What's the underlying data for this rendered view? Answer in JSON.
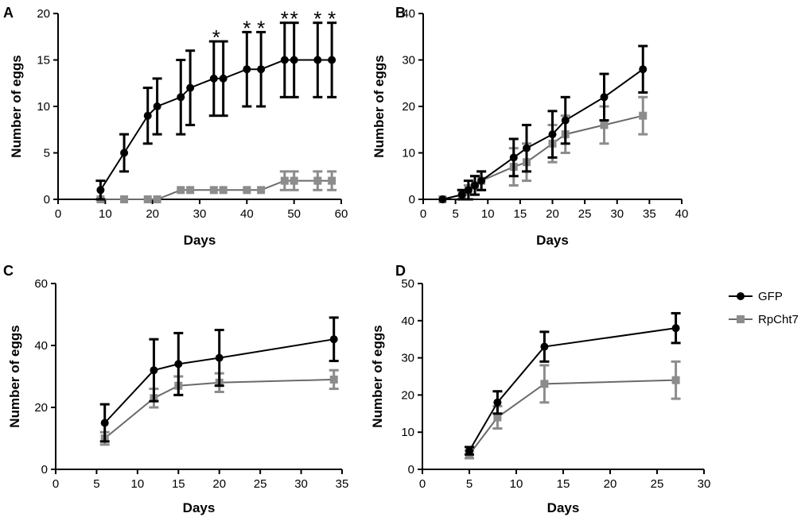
{
  "legend": [
    {
      "name": "GFP",
      "marker": "circle",
      "color": "#000000"
    },
    {
      "name": "RpCht7",
      "marker": "square",
      "color": "#8c8c8c"
    }
  ],
  "colors": {
    "gfp": "#000000",
    "rpcht7": "#8c8c8c",
    "rpcht7_line": "#6a6a6a"
  },
  "chart_data": [
    {
      "panel": "A",
      "type": "line",
      "xlabel": "Days",
      "ylabel": "Number of eggs",
      "xlim": [
        0,
        60
      ],
      "ylim": [
        0,
        20
      ],
      "xticks": [
        0,
        10,
        20,
        30,
        40,
        50,
        60
      ],
      "yticks": [
        0,
        5,
        10,
        15,
        20
      ],
      "series": [
        {
          "name": "GFP",
          "x": [
            9,
            14,
            19,
            21,
            26,
            28,
            33,
            35,
            40,
            43,
            48,
            50,
            55,
            58
          ],
          "y": [
            1,
            5,
            9,
            10,
            11,
            12,
            13,
            13,
            14,
            14,
            15,
            15,
            15,
            15
          ],
          "err": [
            1,
            2,
            3,
            3,
            4,
            4,
            4,
            4,
            4,
            4,
            4,
            4,
            4,
            4
          ]
        },
        {
          "name": "RpCht7",
          "x": [
            9,
            14,
            19,
            21,
            26,
            28,
            33,
            35,
            40,
            43,
            48,
            50,
            55,
            58
          ],
          "y": [
            0,
            0,
            0,
            0,
            1,
            1,
            1,
            1,
            1,
            1,
            2,
            2,
            2,
            2
          ],
          "err": [
            0,
            0,
            0,
            0,
            0,
            0,
            0,
            0,
            0,
            0,
            1,
            1,
            1,
            1
          ]
        }
      ],
      "annotations": [
        {
          "text": "*",
          "x": 33.5,
          "y": 17
        },
        {
          "text": "*",
          "x": 40,
          "y": 18
        },
        {
          "text": "*",
          "x": 43,
          "y": 18
        },
        {
          "text": "*",
          "x": 48,
          "y": 19
        },
        {
          "text": "*",
          "x": 50,
          "y": 19
        },
        {
          "text": "*",
          "x": 55,
          "y": 19
        },
        {
          "text": "*",
          "x": 58,
          "y": 19
        }
      ]
    },
    {
      "panel": "B",
      "type": "line",
      "xlabel": "Days",
      "ylabel": "Number of eggs",
      "xlim": [
        0,
        40
      ],
      "ylim": [
        0,
        40
      ],
      "xticks": [
        0,
        5,
        10,
        15,
        20,
        25,
        30,
        35,
        40
      ],
      "yticks": [
        0,
        10,
        20,
        30,
        40
      ],
      "series": [
        {
          "name": "GFP",
          "x": [
            3,
            6,
            7,
            8,
            9,
            14,
            16,
            20,
            22,
            28,
            34
          ],
          "y": [
            0,
            1,
            2,
            3,
            4,
            9,
            11,
            14,
            17,
            22,
            28
          ],
          "err": [
            0,
            1,
            2,
            2,
            2,
            4,
            5,
            5,
            5,
            5,
            5
          ]
        },
        {
          "name": "RpCht7",
          "x": [
            3,
            6,
            7,
            8,
            9,
            14,
            16,
            20,
            22,
            28,
            34
          ],
          "y": [
            0,
            1,
            2,
            3,
            4,
            7,
            8,
            12,
            14,
            16,
            18
          ],
          "err": [
            0,
            1,
            1,
            2,
            2,
            4,
            4,
            4,
            4,
            4,
            4
          ]
        }
      ],
      "annotations": []
    },
    {
      "panel": "C",
      "type": "line",
      "xlabel": "Days",
      "ylabel": "Number of eggs",
      "xlim": [
        0,
        35
      ],
      "ylim": [
        0,
        60
      ],
      "xticks": [
        0,
        5,
        10,
        15,
        20,
        25,
        30,
        35
      ],
      "yticks": [
        0,
        20,
        40,
        60
      ],
      "series": [
        {
          "name": "GFP",
          "x": [
            6,
            12,
            15,
            20,
            34
          ],
          "y": [
            15,
            32,
            34,
            36,
            42
          ],
          "err": [
            6,
            10,
            10,
            9,
            7
          ]
        },
        {
          "name": "RpCht7",
          "x": [
            6,
            12,
            15,
            20,
            34
          ],
          "y": [
            10,
            23,
            27,
            28,
            29
          ],
          "err": [
            2,
            3,
            3,
            3,
            3
          ]
        }
      ],
      "annotations": []
    },
    {
      "panel": "D",
      "type": "line",
      "xlabel": "Days",
      "ylabel": "Number of eggs",
      "xlim": [
        0,
        30
      ],
      "ylim": [
        0,
        50
      ],
      "xticks": [
        0,
        5,
        10,
        15,
        20,
        25,
        30
      ],
      "yticks": [
        0,
        10,
        20,
        30,
        40,
        50
      ],
      "series": [
        {
          "name": "GFP",
          "x": [
            5,
            8,
            13,
            27
          ],
          "y": [
            5,
            18,
            33,
            38
          ],
          "err": [
            1,
            3,
            4,
            4
          ]
        },
        {
          "name": "RpCht7",
          "x": [
            5,
            8,
            13,
            27
          ],
          "y": [
            4,
            14,
            23,
            24
          ],
          "err": [
            1,
            3,
            5,
            5
          ]
        }
      ],
      "annotations": []
    }
  ]
}
